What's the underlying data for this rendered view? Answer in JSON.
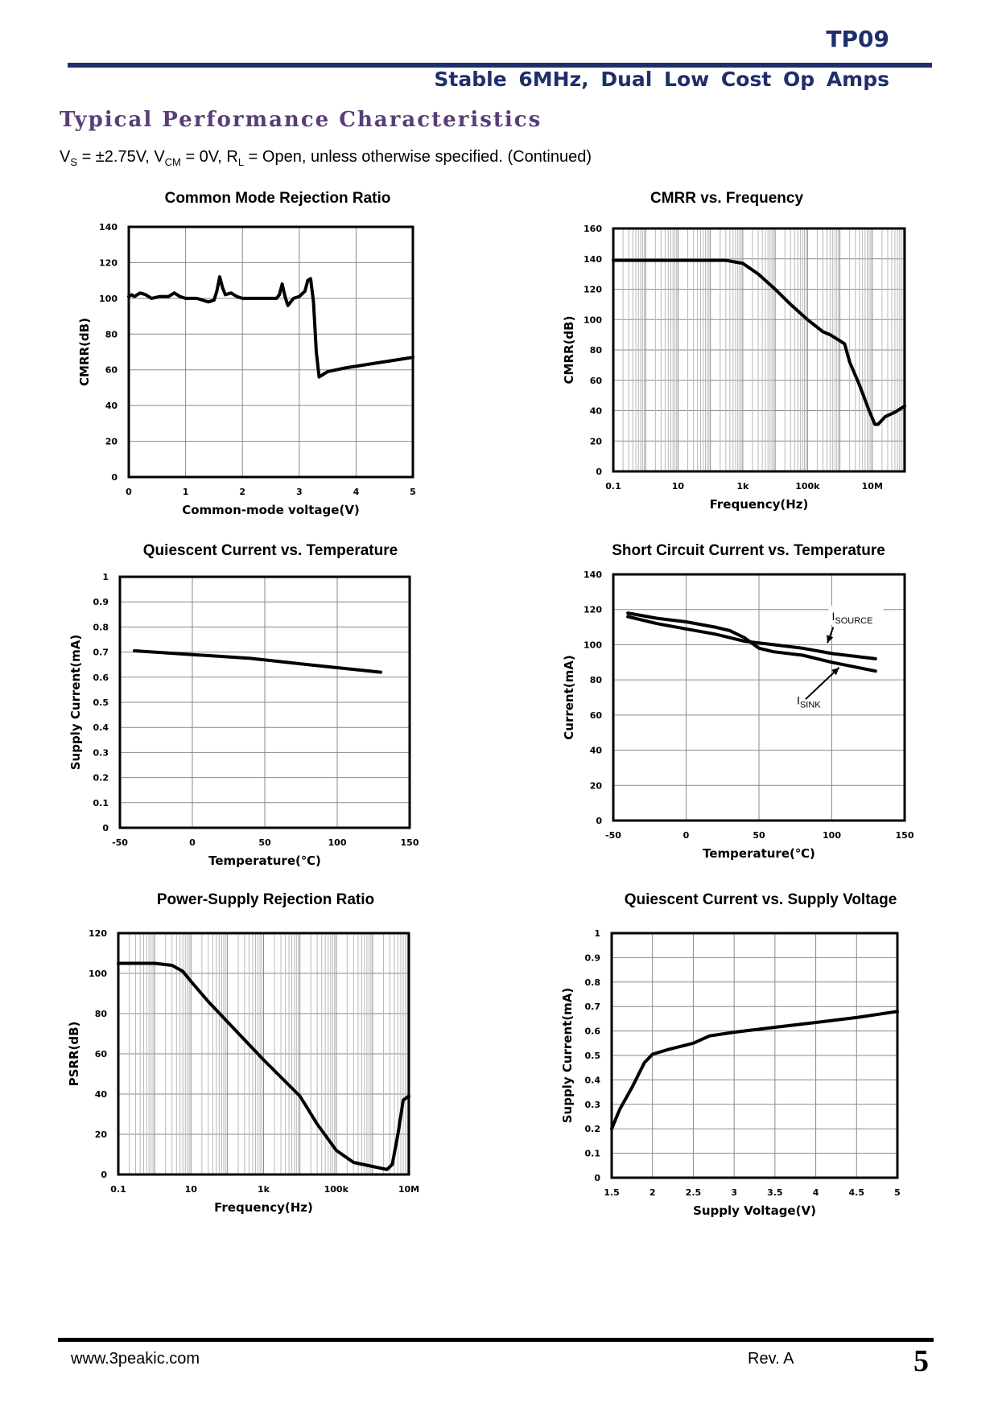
{
  "header": {
    "part_number": "TP09",
    "subtitle": "Stable 6MHz, Dual Low Cost Op Amps",
    "rule_color": "#1f2f6b",
    "section_color": "#5a3d79"
  },
  "section_title": "Typical Performance Characteristics",
  "conditions": {
    "vs": "V",
    "vs_sub": "S",
    "vs_val": " = ±2.75V, V",
    "vcm_sub": "CM",
    "vcm_val": " = 0V, R",
    "rl_sub": "L",
    "rest": " = Open, unless otherwise specified. (Continued)"
  },
  "chart_data": [
    {
      "type": "line",
      "title": "Common Mode Rejection Ratio",
      "xlabel": "Common-mode voltage(V)",
      "ylabel": "CMRR(dB)",
      "xscale": "linear",
      "xlim": [
        0,
        5
      ],
      "ylim": [
        0,
        140
      ],
      "xticks": [
        0,
        1,
        2,
        3,
        4,
        5
      ],
      "xtick_labels": [
        "0",
        "1",
        "2",
        "3",
        "4",
        "5"
      ],
      "yticks": [
        0,
        20,
        40,
        60,
        80,
        100,
        120,
        140
      ],
      "ytick_labels": [
        "0",
        "20",
        "40",
        "60",
        "80",
        "100",
        "120",
        "140"
      ],
      "grid": true,
      "series": [
        {
          "name": "CMRR",
          "points": [
            [
              0,
              101
            ],
            [
              0.05,
              102
            ],
            [
              0.1,
              101
            ],
            [
              0.2,
              103
            ],
            [
              0.3,
              102
            ],
            [
              0.4,
              100
            ],
            [
              0.55,
              101
            ],
            [
              0.7,
              101
            ],
            [
              0.8,
              103
            ],
            [
              0.9,
              101
            ],
            [
              1.0,
              100
            ],
            [
              1.2,
              100
            ],
            [
              1.4,
              98
            ],
            [
              1.5,
              99
            ],
            [
              1.55,
              104
            ],
            [
              1.6,
              112
            ],
            [
              1.65,
              106
            ],
            [
              1.7,
              102
            ],
            [
              1.8,
              103
            ],
            [
              1.9,
              101
            ],
            [
              2.0,
              100
            ],
            [
              2.2,
              100
            ],
            [
              2.4,
              100
            ],
            [
              2.6,
              100
            ],
            [
              2.65,
              102
            ],
            [
              2.7,
              108
            ],
            [
              2.75,
              101
            ],
            [
              2.8,
              96
            ],
            [
              2.9,
              100
            ],
            [
              3.0,
              101
            ],
            [
              3.1,
              104
            ],
            [
              3.15,
              110
            ],
            [
              3.2,
              111
            ],
            [
              3.25,
              98
            ],
            [
              3.3,
              70
            ],
            [
              3.35,
              56
            ],
            [
              3.5,
              59
            ],
            [
              3.8,
              61
            ],
            [
              4.2,
              63
            ],
            [
              4.6,
              65
            ],
            [
              5.0,
              67
            ]
          ]
        }
      ]
    },
    {
      "type": "line",
      "title": "CMRR vs. Frequency",
      "xlabel": "Frequency(Hz)",
      "ylabel": "CMRR(dB)",
      "xscale": "log",
      "xlim": [
        0.1,
        100000000.0
      ],
      "ylim": [
        0,
        160
      ],
      "xticks": [
        0.1,
        10,
        1000,
        100000,
        10000000
      ],
      "xtick_labels": [
        "0.1",
        "10",
        "1k",
        "100k",
        "10M"
      ],
      "yticks": [
        0,
        20,
        40,
        60,
        80,
        100,
        120,
        140,
        160
      ],
      "ytick_labels": [
        "0",
        "20",
        "40",
        "60",
        "80",
        "100",
        "120",
        "140",
        "160"
      ],
      "grid": true,
      "series": [
        {
          "name": "CMRR",
          "points": [
            [
              0.1,
              139
            ],
            [
              10,
              139
            ],
            [
              300,
              139
            ],
            [
              1000,
              137
            ],
            [
              3000,
              130
            ],
            [
              10000,
              120
            ],
            [
              30000,
              110
            ],
            [
              100000,
              100
            ],
            [
              300000,
              92
            ],
            [
              500000,
              90
            ],
            [
              1000000,
              86
            ],
            [
              1400000,
              84
            ],
            [
              2000000,
              72
            ],
            [
              4000000,
              57
            ],
            [
              8000000,
              40
            ],
            [
              12000000,
              31
            ],
            [
              15000000,
              31
            ],
            [
              25000000,
              36
            ],
            [
              50000000,
              39
            ],
            [
              100000000,
              43
            ]
          ]
        }
      ]
    },
    {
      "type": "line",
      "title": "Quiescent Current vs. Temperature",
      "xlabel": "Temperature(℃)",
      "ylabel": "Supply  Current(mA)",
      "xscale": "linear",
      "xlim": [
        -50,
        150
      ],
      "ylim": [
        0,
        1
      ],
      "xticks": [
        -50,
        0,
        50,
        100,
        150
      ],
      "xtick_labels": [
        "-50",
        "0",
        "50",
        "100",
        "150"
      ],
      "yticks": [
        0,
        0.1,
        0.2,
        0.3,
        0.4,
        0.5,
        0.6,
        0.7,
        0.8,
        0.9,
        1
      ],
      "ytick_labels": [
        "0",
        "0.1",
        "0.2",
        "0.3",
        "0.4",
        "0.5",
        "0.6",
        "0.7",
        "0.8",
        "0.9",
        "1"
      ],
      "grid": true,
      "series": [
        {
          "name": "Supply Current",
          "points": [
            [
              -40,
              0.705
            ],
            [
              0,
              0.69
            ],
            [
              40,
              0.675
            ],
            [
              80,
              0.65
            ],
            [
              130,
              0.62
            ]
          ]
        }
      ]
    },
    {
      "type": "line",
      "title": "Short Circuit Current vs. Temperature",
      "xlabel": "Temperature(℃)",
      "ylabel": "Current(mA)",
      "xscale": "linear",
      "xlim": [
        -50,
        150
      ],
      "ylim": [
        0,
        140
      ],
      "xticks": [
        -50,
        0,
        50,
        100,
        150
      ],
      "xtick_labels": [
        "-50",
        "0",
        "50",
        "100",
        "150"
      ],
      "yticks": [
        0,
        20,
        40,
        60,
        80,
        100,
        120,
        140
      ],
      "ytick_labels": [
        "0",
        "20",
        "40",
        "60",
        "80",
        "100",
        "120",
        "140"
      ],
      "grid": true,
      "series": [
        {
          "name": "ISOURCE",
          "points": [
            [
              -40,
              116
            ],
            [
              -20,
              112
            ],
            [
              0,
              109
            ],
            [
              20,
              106
            ],
            [
              40,
              102
            ],
            [
              60,
              100
            ],
            [
              80,
              98
            ],
            [
              100,
              95
            ],
            [
              130,
              92
            ]
          ]
        },
        {
          "name": "ISINK",
          "points": [
            [
              -40,
              118
            ],
            [
              -20,
              115
            ],
            [
              0,
              113
            ],
            [
              20,
              110
            ],
            [
              30,
              108
            ],
            [
              40,
              104
            ],
            [
              50,
              98
            ],
            [
              60,
              96
            ],
            [
              80,
              94
            ],
            [
              100,
              90
            ],
            [
              130,
              85
            ]
          ]
        }
      ],
      "annotations": [
        {
          "label": "I",
          "sub": "SOURCE",
          "x": 100,
          "y": 114
        },
        {
          "label": "I",
          "sub": "SINK",
          "x": 76,
          "y": 66
        }
      ]
    },
    {
      "type": "line",
      "title": "Power-Supply Rejection Ratio",
      "xlabel": "Frequency(Hz)",
      "ylabel": "PSRR(dB)",
      "xscale": "log",
      "xlim": [
        0.1,
        10000000
      ],
      "ylim": [
        0,
        120
      ],
      "xticks": [
        0.1,
        10,
        1000,
        100000,
        10000000
      ],
      "xtick_labels": [
        "0.1",
        "10",
        "1k",
        "100k",
        "10M"
      ],
      "yticks": [
        0,
        20,
        40,
        60,
        80,
        100,
        120
      ],
      "ytick_labels": [
        "0",
        "20",
        "40",
        "60",
        "80",
        "100",
        "120"
      ],
      "grid": true,
      "series": [
        {
          "name": "PSRR",
          "points": [
            [
              0.1,
              105
            ],
            [
              1,
              105
            ],
            [
              3,
              104
            ],
            [
              6,
              101
            ],
            [
              10,
              96
            ],
            [
              30,
              86
            ],
            [
              100,
              76
            ],
            [
              1000,
              57
            ],
            [
              10000,
              39
            ],
            [
              30000,
              25
            ],
            [
              100000,
              12
            ],
            [
              300000,
              6
            ],
            [
              1000000,
              4
            ],
            [
              2500000,
              2.5
            ],
            [
              3500000,
              5
            ],
            [
              5000000,
              20
            ],
            [
              7000000,
              37
            ],
            [
              10000000,
              39
            ]
          ]
        }
      ]
    },
    {
      "type": "line",
      "title": "Quiescent Current vs. Supply Voltage",
      "xlabel": "Supply  Voltage(V)",
      "ylabel": "Supply  Current(mA)",
      "xscale": "linear",
      "xlim": [
        1.5,
        5
      ],
      "ylim": [
        0,
        1
      ],
      "xticks": [
        1.5,
        2,
        2.5,
        3,
        3.5,
        4,
        4.5,
        5
      ],
      "xtick_labels": [
        "1.5",
        "2",
        "2.5",
        "3",
        "3.5",
        "4",
        "4.5",
        "5"
      ],
      "yticks": [
        0,
        0.1,
        0.2,
        0.3,
        0.4,
        0.5,
        0.6,
        0.7,
        0.8,
        0.9,
        1
      ],
      "ytick_labels": [
        "0",
        "0.1",
        "0.2",
        "0.3",
        "0.4",
        "0.5",
        "0.6",
        "0.7",
        "0.8",
        "0.9",
        "1"
      ],
      "grid": true,
      "series": [
        {
          "name": "Supply Current",
          "points": [
            [
              1.5,
              0.2
            ],
            [
              1.6,
              0.28
            ],
            [
              1.75,
              0.37
            ],
            [
              1.9,
              0.47
            ],
            [
              2.0,
              0.505
            ],
            [
              2.2,
              0.525
            ],
            [
              2.5,
              0.55
            ],
            [
              2.7,
              0.58
            ],
            [
              3.0,
              0.595
            ],
            [
              3.5,
              0.615
            ],
            [
              4.0,
              0.635
            ],
            [
              4.5,
              0.655
            ],
            [
              5.0,
              0.68
            ]
          ]
        }
      ]
    }
  ],
  "footer": {
    "website": "www.3peakic.com",
    "revision": "Rev. A",
    "page": "5"
  }
}
